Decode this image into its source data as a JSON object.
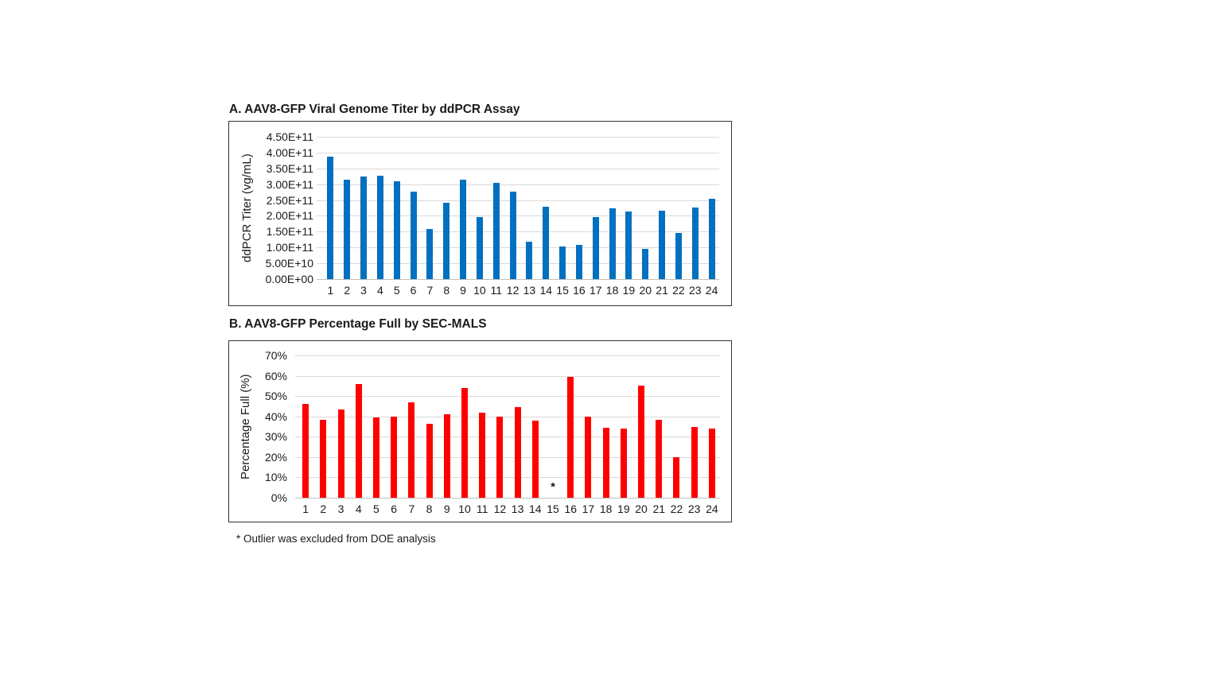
{
  "page": {
    "background_color": "#ffffff",
    "text_color": "#1a1a1a",
    "gridline_color": "#d9d9d9"
  },
  "footnote": "* Outlier was excluded from DOE analysis",
  "chart_data": [
    {
      "type": "bar",
      "title": "A. AAV8-GFP Viral Genome Titer by ddPCR Assay",
      "xlabel": "",
      "ylabel": "ddPCR Titer (vg/mL)",
      "bar_color": "#0070C0",
      "grid": true,
      "legend": null,
      "ylim": [
        0,
        450000000000.0
      ],
      "ytick_labels": [
        "0.00E+00",
        "5.00E+10",
        "1.00E+11",
        "1.50E+11",
        "2.00E+11",
        "2.50E+11",
        "3.00E+11",
        "3.50E+11",
        "4.00E+11",
        "4.50E+11"
      ],
      "categories": [
        "1",
        "2",
        "3",
        "4",
        "5",
        "6",
        "7",
        "8",
        "9",
        "10",
        "11",
        "12",
        "13",
        "14",
        "15",
        "16",
        "17",
        "18",
        "19",
        "20",
        "21",
        "22",
        "23",
        "24"
      ],
      "values": [
        387000000000.0,
        314000000000.0,
        324000000000.0,
        327000000000.0,
        310000000000.0,
        276000000000.0,
        158000000000.0,
        242000000000.0,
        313000000000.0,
        195000000000.0,
        305000000000.0,
        277000000000.0,
        119000000000.0,
        229000000000.0,
        102000000000.0,
        107000000000.0,
        197000000000.0,
        224000000000.0,
        214000000000.0,
        95000000000.0,
        216000000000.0,
        145000000000.0,
        227000000000.0,
        255000000000.0
      ],
      "annotations": []
    },
    {
      "type": "bar",
      "title": "B. AAV8-GFP Percentage Full by SEC-MALS",
      "xlabel": "",
      "ylabel": "Percentage Full (%)",
      "bar_color": "#FF0000",
      "grid": true,
      "legend": null,
      "ylim": [
        0,
        70
      ],
      "ytick_labels": [
        "0%",
        "10%",
        "20%",
        "30%",
        "40%",
        "50%",
        "60%",
        "70%"
      ],
      "categories": [
        "1",
        "2",
        "3",
        "4",
        "5",
        "6",
        "7",
        "8",
        "9",
        "10",
        "11",
        "12",
        "13",
        "14",
        "15",
        "16",
        "17",
        "18",
        "19",
        "20",
        "21",
        "22",
        "23",
        "24"
      ],
      "values": [
        46,
        38.5,
        43.5,
        56,
        39.5,
        40,
        47,
        36.5,
        41,
        54,
        42,
        40,
        44.5,
        38,
        null,
        59.5,
        40,
        34.5,
        34,
        55,
        38.5,
        20,
        35,
        34
      ],
      "annotations": [
        {
          "category": "15",
          "symbol": "*"
        }
      ]
    }
  ]
}
